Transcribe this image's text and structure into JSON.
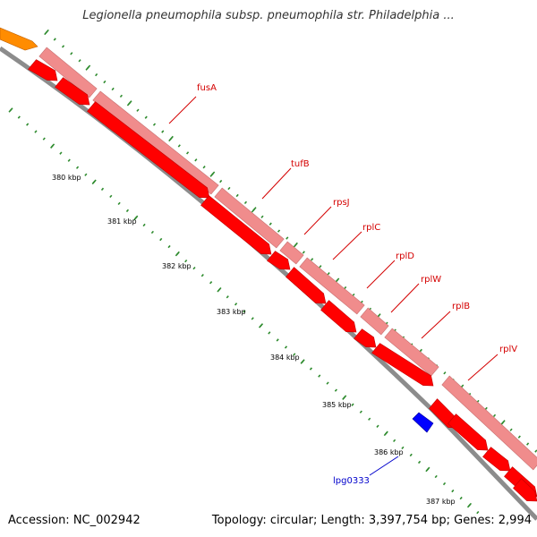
{
  "title": "Legionella pneumophila subsp. pneumophila str. Philadelphia ...",
  "footer": {
    "accession": "Accession: NC_002942",
    "summary": "Topology: circular; Length: 3,397,754 bp; Genes: 2,994"
  },
  "colors": {
    "backbone": "#8c8c8c",
    "cds_forward": "#ff0000",
    "cds_outline": "#c00000",
    "gene_band": "#f08c8c",
    "cds_reverse": "#0000ff",
    "other_feature": "#ff8c00",
    "ticks": "#2e8b2e",
    "gene_label": "#d40000",
    "reverse_label": "#0000cc"
  },
  "diagram": {
    "kbp_labels": [
      "380 kbp",
      "381 kbp",
      "382 kbp",
      "383 kbp",
      "384 kbp",
      "385 kbp",
      "386 kbp",
      "387 kbp"
    ],
    "gene_labels": [
      "fusA",
      "tufB",
      "rpsJ",
      "rplC",
      "rplD",
      "rplW",
      "rplB",
      "rplV"
    ],
    "reverse_labels": [
      "lpg0333"
    ]
  }
}
